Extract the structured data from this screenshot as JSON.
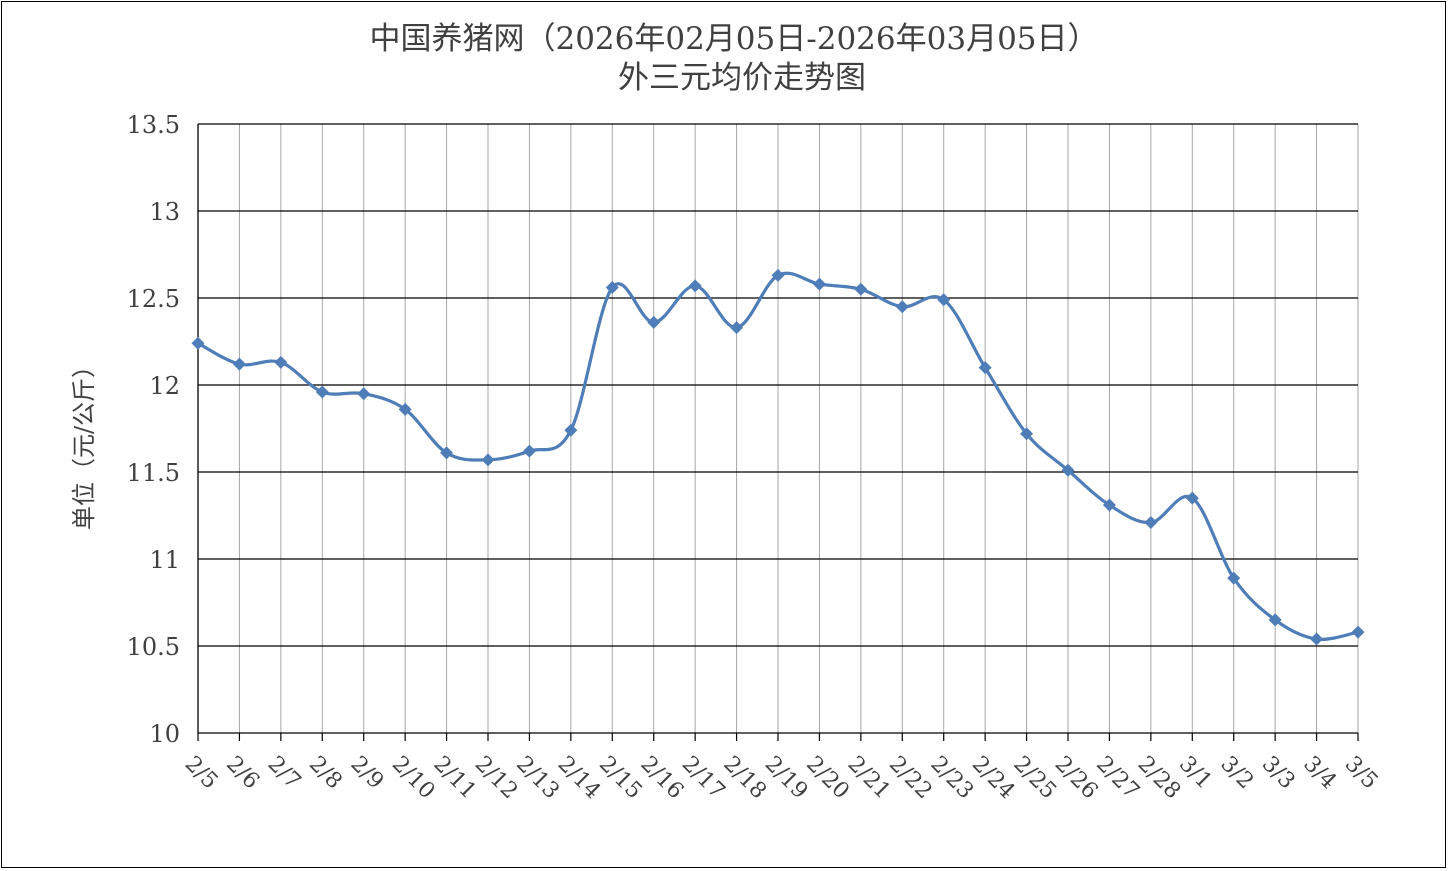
{
  "chart_data": {
    "type": "line",
    "title": "中国养猪网（2026年02月05日-2026年03月05日）",
    "subtitle": "外三元均价走势图",
    "xlabel": "",
    "ylabel": "单位（元/公斤）",
    "ylim": [
      10,
      13.5
    ],
    "yticks": [
      "10",
      "10.5",
      "11",
      "11.5",
      "12",
      "12.5",
      "13",
      "13.5"
    ],
    "categories": [
      "2/5",
      "2/6",
      "2/7",
      "2/8",
      "2/9",
      "2/10",
      "2/11",
      "2/12",
      "2/13",
      "2/14",
      "2/15",
      "2/16",
      "2/17",
      "2/18",
      "2/19",
      "2/20",
      "2/21",
      "2/22",
      "2/23",
      "2/24",
      "2/25",
      "2/26",
      "2/27",
      "2/28",
      "3/1",
      "3/2",
      "3/3",
      "3/4",
      "3/5"
    ],
    "values": [
      12.24,
      12.12,
      12.13,
      11.96,
      11.95,
      11.86,
      11.61,
      11.57,
      11.62,
      11.74,
      12.56,
      12.36,
      12.57,
      12.33,
      12.63,
      12.58,
      12.55,
      12.45,
      12.49,
      12.1,
      11.72,
      11.51,
      11.31,
      11.21,
      11.35,
      10.89,
      10.65,
      10.54,
      10.58
    ],
    "grid": true,
    "marker": "diamond",
    "smooth": true,
    "line_color": "#4F7DB8",
    "grid_color_horizontal": "#000000",
    "grid_color_vertical": "#A6A6A6"
  }
}
